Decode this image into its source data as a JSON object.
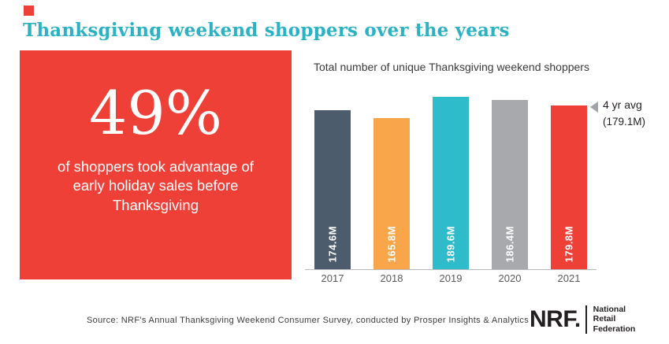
{
  "header": {
    "title": "Thanksgiving weekend shoppers over the years"
  },
  "stat_panel": {
    "value": "49%",
    "description": "of shoppers took advantage of early holiday sales before Thanksgiving"
  },
  "chart_data": {
    "type": "bar",
    "title": "Total number of unique Thanksgiving weekend shoppers",
    "categories": [
      "2017",
      "2018",
      "2019",
      "2020",
      "2021"
    ],
    "values": [
      174.6,
      165.8,
      189.6,
      186.4,
      179.8
    ],
    "bar_labels": [
      "174.6M",
      "165.8M",
      "189.6M",
      "186.4M",
      "179.8M"
    ],
    "bar_colors": [
      "#4d5c6c",
      "#f9a64a",
      "#2fbcca",
      "#a7a9ac",
      "#ee4037"
    ],
    "ylim": [
      0,
      189.6
    ],
    "grid": false,
    "legend": "none",
    "annotation": {
      "line1": "4 yr avg",
      "line2": "(179.1M)",
      "value": 179.1,
      "icon": "left-triangle-arrow"
    }
  },
  "footer": {
    "source": "Source: NRF's Annual Thanksgiving Weekend Consumer Survey, conducted by Prosper Insights & Analytics",
    "logo": {
      "brand": "NRF.",
      "org_line1": "National",
      "org_line2": "Retail",
      "org_line3": "Federation"
    }
  },
  "colors": {
    "accent_red": "#ee4037",
    "title_teal": "#2bb2c3"
  }
}
